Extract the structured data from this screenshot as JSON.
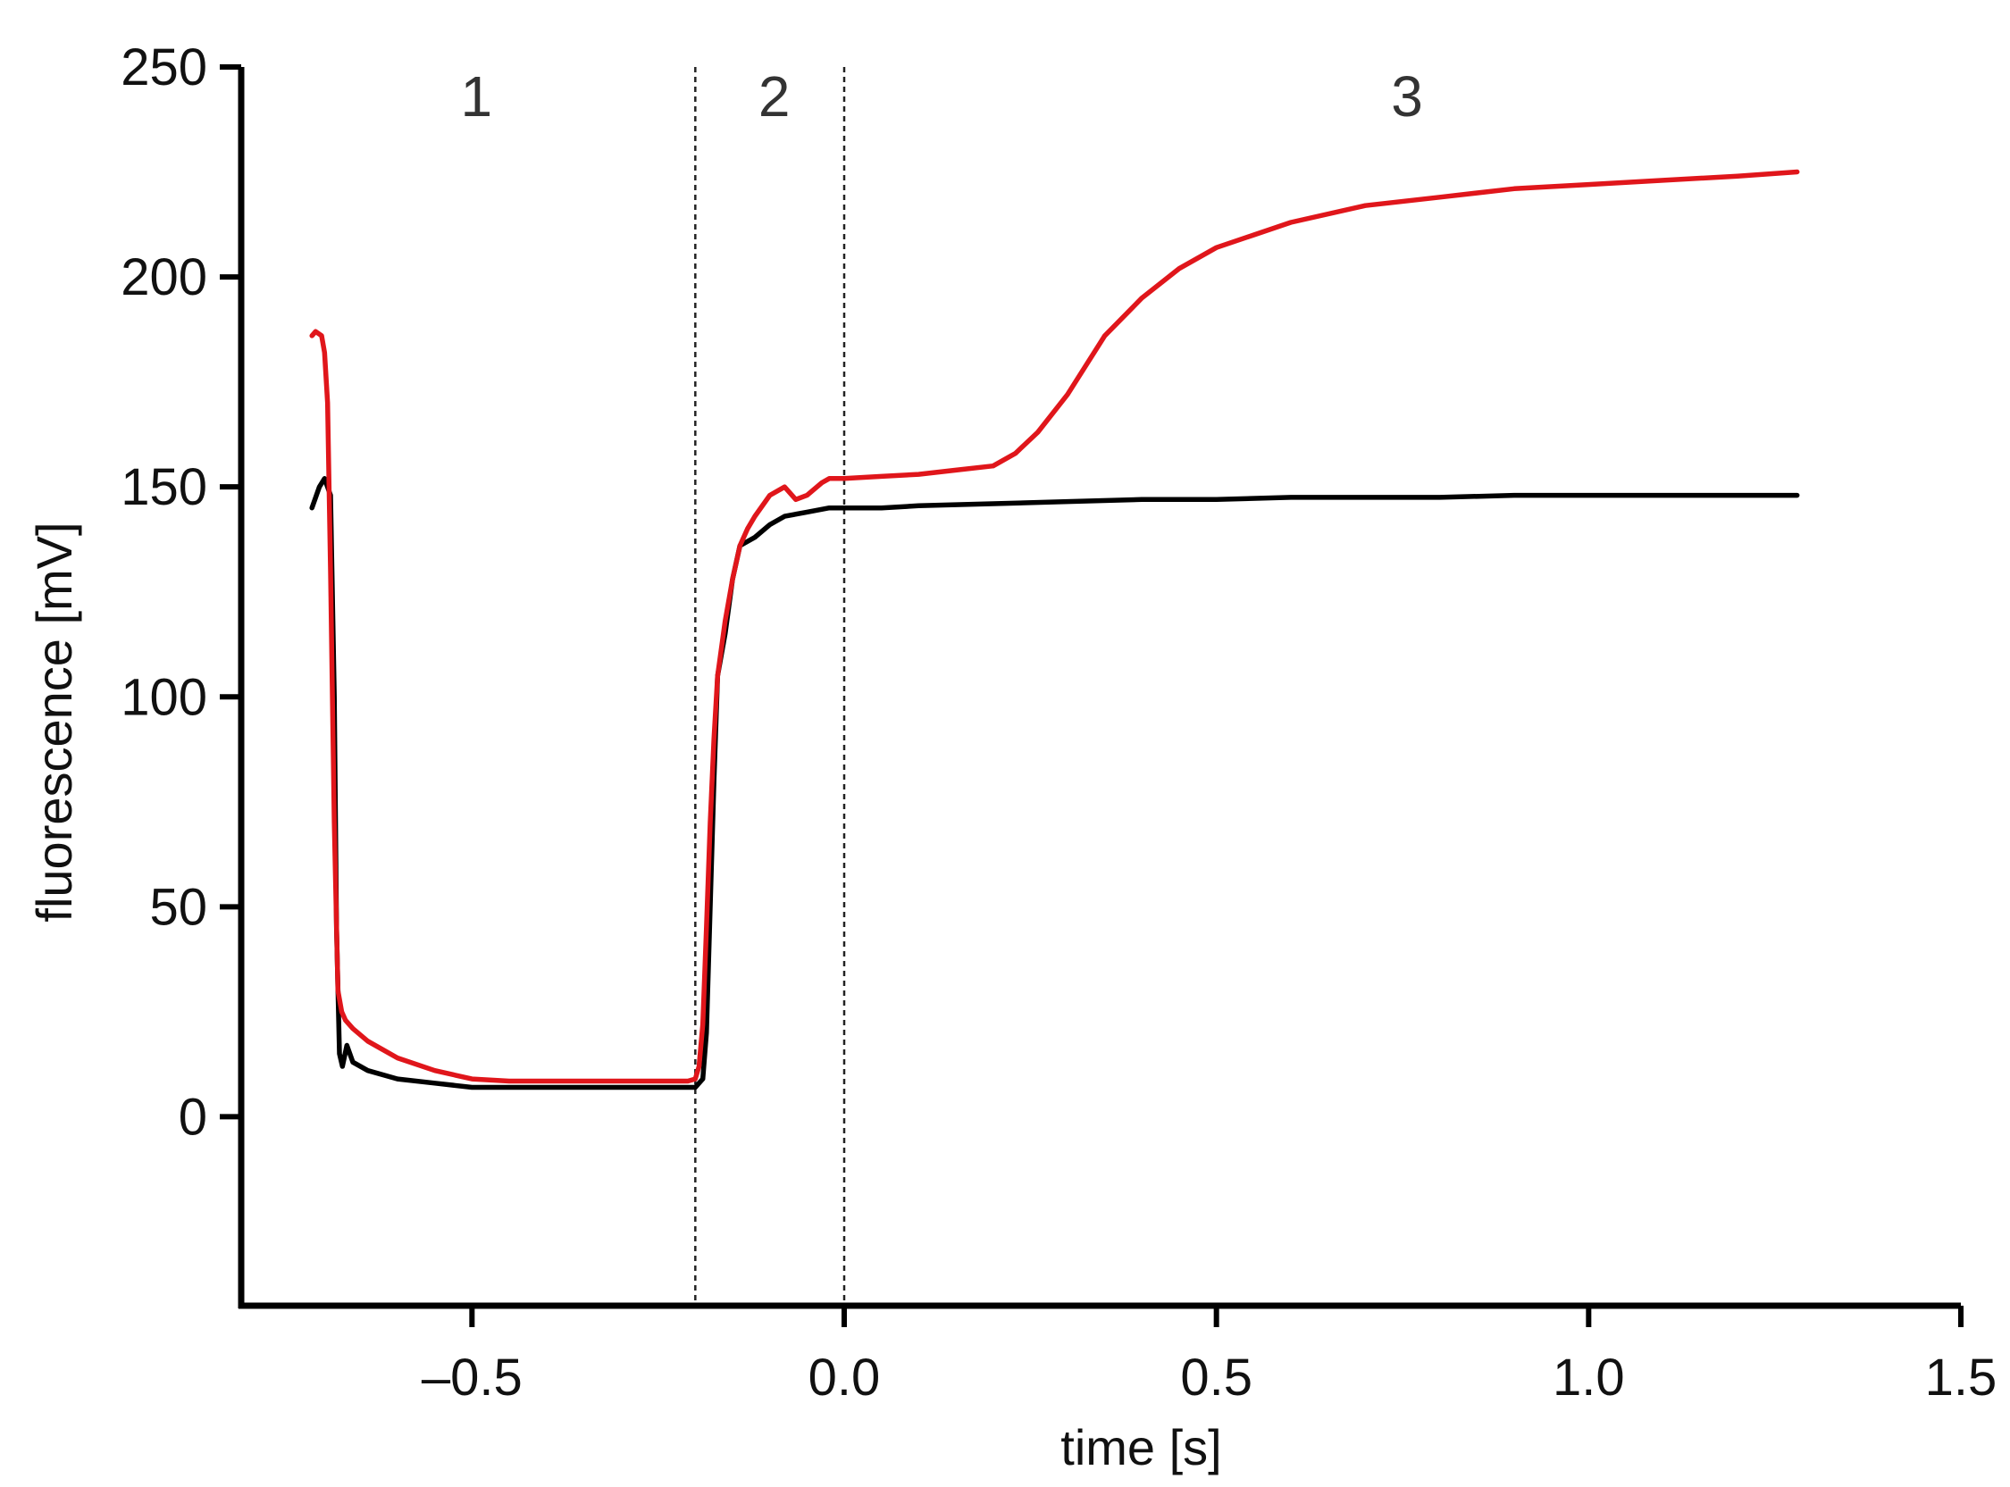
{
  "chart_data": {
    "type": "line",
    "xlabel": "time [s]",
    "ylabel": "fluorescence [mV]",
    "xlim": [
      -0.81,
      1.5
    ],
    "ylim": [
      -45,
      250
    ],
    "xticks": [
      -0.5,
      0.0,
      0.5,
      1.0,
      1.5
    ],
    "xtick_labels": [
      "–0.5",
      "0.0",
      "0.5",
      "1.0",
      "1.5"
    ],
    "yticks": [
      0,
      50,
      100,
      150,
      200,
      250
    ],
    "ytick_labels": [
      "0",
      "50",
      "100",
      "150",
      "200",
      "250"
    ],
    "grid": false,
    "legend": "none",
    "region_lines": [
      -0.2,
      0.0
    ],
    "region_labels": [
      {
        "text": "1",
        "x": -0.5
      },
      {
        "text": "2",
        "x": -0.1
      },
      {
        "text": "3",
        "x": 0.75
      }
    ],
    "series": [
      {
        "color": "#000000",
        "x": [
          -0.715,
          -0.705,
          -0.698,
          -0.69,
          -0.685,
          -0.682,
          -0.678,
          -0.674,
          -0.668,
          -0.66,
          -0.64,
          -0.6,
          -0.55,
          -0.5,
          -0.45,
          -0.4,
          -0.35,
          -0.3,
          -0.25,
          -0.21,
          -0.2,
          -0.19,
          -0.185,
          -0.18,
          -0.175,
          -0.17,
          -0.16,
          -0.15,
          -0.14,
          -0.12,
          -0.1,
          -0.08,
          -0.05,
          -0.02,
          0.0,
          0.05,
          0.1,
          0.2,
          0.3,
          0.4,
          0.5,
          0.6,
          0.7,
          0.8,
          0.9,
          1.0,
          1.1,
          1.2,
          1.28
        ],
        "y": [
          145,
          150,
          152,
          148,
          100,
          45,
          15,
          12,
          17,
          13,
          11,
          9,
          8,
          7,
          7,
          7,
          7,
          7,
          7,
          7,
          7,
          9,
          20,
          50,
          80,
          105,
          115,
          128,
          136,
          138,
          141,
          143,
          144,
          145,
          145,
          145,
          145.5,
          146,
          146.5,
          147,
          147,
          147.5,
          147.5,
          147.5,
          148,
          148,
          148,
          148,
          148
        ]
      },
      {
        "color": "#e0161b",
        "x": [
          -0.715,
          -0.71,
          -0.702,
          -0.698,
          -0.694,
          -0.69,
          -0.685,
          -0.68,
          -0.675,
          -0.67,
          -0.66,
          -0.64,
          -0.62,
          -0.6,
          -0.55,
          -0.5,
          -0.45,
          -0.4,
          -0.35,
          -0.3,
          -0.25,
          -0.21,
          -0.2,
          -0.195,
          -0.19,
          -0.185,
          -0.18,
          -0.175,
          -0.17,
          -0.16,
          -0.15,
          -0.14,
          -0.13,
          -0.12,
          -0.1,
          -0.08,
          -0.065,
          -0.05,
          -0.03,
          -0.02,
          0.0,
          0.05,
          0.1,
          0.15,
          0.2,
          0.23,
          0.26,
          0.3,
          0.35,
          0.4,
          0.45,
          0.5,
          0.55,
          0.6,
          0.7,
          0.8,
          0.9,
          1.0,
          1.1,
          1.2,
          1.28
        ],
        "y": [
          186,
          187,
          186,
          182,
          170,
          130,
          70,
          30,
          25,
          23,
          21,
          18,
          16,
          14,
          11,
          9,
          8.5,
          8.5,
          8.5,
          8.5,
          8.5,
          8.5,
          9,
          12,
          22,
          45,
          70,
          90,
          105,
          118,
          128,
          136,
          140,
          143,
          148,
          150,
          147,
          148,
          151,
          152,
          152,
          152.5,
          153,
          154,
          155,
          158,
          163,
          172,
          186,
          195,
          202,
          207,
          210,
          213,
          217,
          219,
          221,
          222,
          223,
          224,
          225
        ]
      }
    ]
  }
}
